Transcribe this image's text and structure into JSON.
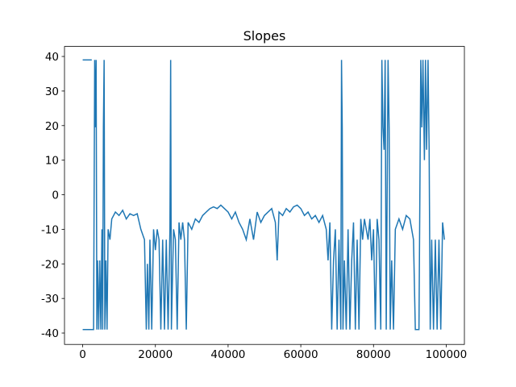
{
  "chart_data": {
    "type": "line",
    "title": "Slopes",
    "xlim": [
      -5000,
      105000
    ],
    "ylim": [
      -43.3,
      42.9
    ],
    "xticks": [
      0,
      20000,
      40000,
      60000,
      80000,
      100000
    ],
    "yticks": [
      -40,
      -30,
      -20,
      -10,
      0,
      10,
      20,
      30,
      40
    ],
    "x": [
      0,
      2500,
      2600,
      0,
      3000,
      3300,
      3500,
      3700,
      3900,
      4100,
      4400,
      4700,
      5000,
      5300,
      5500,
      5700,
      5900,
      6100,
      6400,
      6700,
      7000,
      7500,
      8000,
      9000,
      10000,
      11000,
      12000,
      13000,
      14000,
      15000,
      16000,
      17000,
      17500,
      17800,
      18200,
      18500,
      19000,
      19500,
      20000,
      20500,
      21000,
      21500,
      22000,
      22500,
      23000,
      23500,
      24000,
      24200,
      24400,
      25000,
      25500,
      26000,
      26500,
      27000,
      27500,
      28000,
      28500,
      29000,
      30000,
      31000,
      32000,
      33000,
      34000,
      35000,
      36000,
      37000,
      38000,
      39000,
      40000,
      41000,
      42000,
      43000,
      44000,
      45000,
      46000,
      47000,
      48000,
      49000,
      50000,
      51000,
      52000,
      53000,
      53500,
      54000,
      55000,
      56000,
      57000,
      58000,
      59000,
      60000,
      61000,
      62000,
      63000,
      64000,
      65000,
      66000,
      67000,
      67500,
      68000,
      68500,
      69000,
      69500,
      70000,
      70500,
      71000,
      71200,
      71400,
      71600,
      72000,
      72500,
      73000,
      73500,
      74000,
      74500,
      75000,
      75500,
      76000,
      76500,
      77000,
      77500,
      78000,
      78500,
      79000,
      79500,
      80000,
      80500,
      81000,
      81500,
      82000,
      82300,
      82600,
      82900,
      83200,
      83500,
      84000,
      84300,
      84600,
      85000,
      85500,
      86000,
      87000,
      88000,
      89000,
      90000,
      91000,
      91500,
      92500,
      93000,
      93300,
      93600,
      94000,
      94300,
      94600,
      95000,
      95300,
      95600,
      96000,
      96500,
      97000,
      97500,
      98000,
      98500,
      99000,
      99500
    ],
    "series": [
      {
        "color": "#1f77b4",
        "values": [
          39,
          39,
          null,
          -39,
          -39,
          39,
          19.5,
          39,
          -39,
          -19,
          -39,
          -19,
          -39,
          -10,
          -39,
          19.5,
          39,
          -39,
          -19,
          -39,
          -10,
          -13,
          -7,
          -5,
          -6,
          -4.5,
          -7,
          -5.5,
          -6,
          -5.5,
          -10,
          -13,
          -39,
          -20,
          -39,
          -13,
          -39,
          -10,
          -16,
          -10,
          -13,
          -39,
          -13,
          -39,
          -13,
          -39,
          -10,
          39,
          -39,
          -10,
          -13,
          -39,
          -8,
          -13,
          -8,
          -13,
          -39,
          -8,
          -10,
          -7,
          -8,
          -6,
          -5,
          -4,
          -3.5,
          -4,
          -3,
          -4,
          -5,
          -7,
          -5,
          -8,
          -10,
          -13,
          -7,
          -13,
          -5,
          -8,
          -6,
          -5,
          -4,
          -8,
          -19,
          -5,
          -6,
          -4,
          -5,
          -3.5,
          -3,
          -4,
          -6,
          -5,
          -7,
          -6,
          -8,
          -6,
          -10,
          -19,
          -8,
          -39,
          -19,
          -10,
          -39,
          -13,
          -39,
          39,
          19.5,
          -39,
          -19,
          -39,
          -10,
          -39,
          -19,
          -8,
          -39,
          -13,
          -39,
          -7,
          -13,
          -7,
          -10,
          -13,
          -7,
          -19,
          -10,
          -39,
          -7,
          -13,
          -39,
          39,
          19.5,
          13,
          39,
          -39,
          39,
          19.5,
          -39,
          -19,
          -39,
          -10,
          -7,
          -10,
          -6,
          -7,
          -13,
          -39,
          -39,
          39,
          19.5,
          39,
          10,
          39,
          13,
          39,
          13,
          -39,
          -13,
          -39,
          -13,
          -39,
          -13,
          -39,
          -8,
          -13
        ]
      }
    ]
  }
}
